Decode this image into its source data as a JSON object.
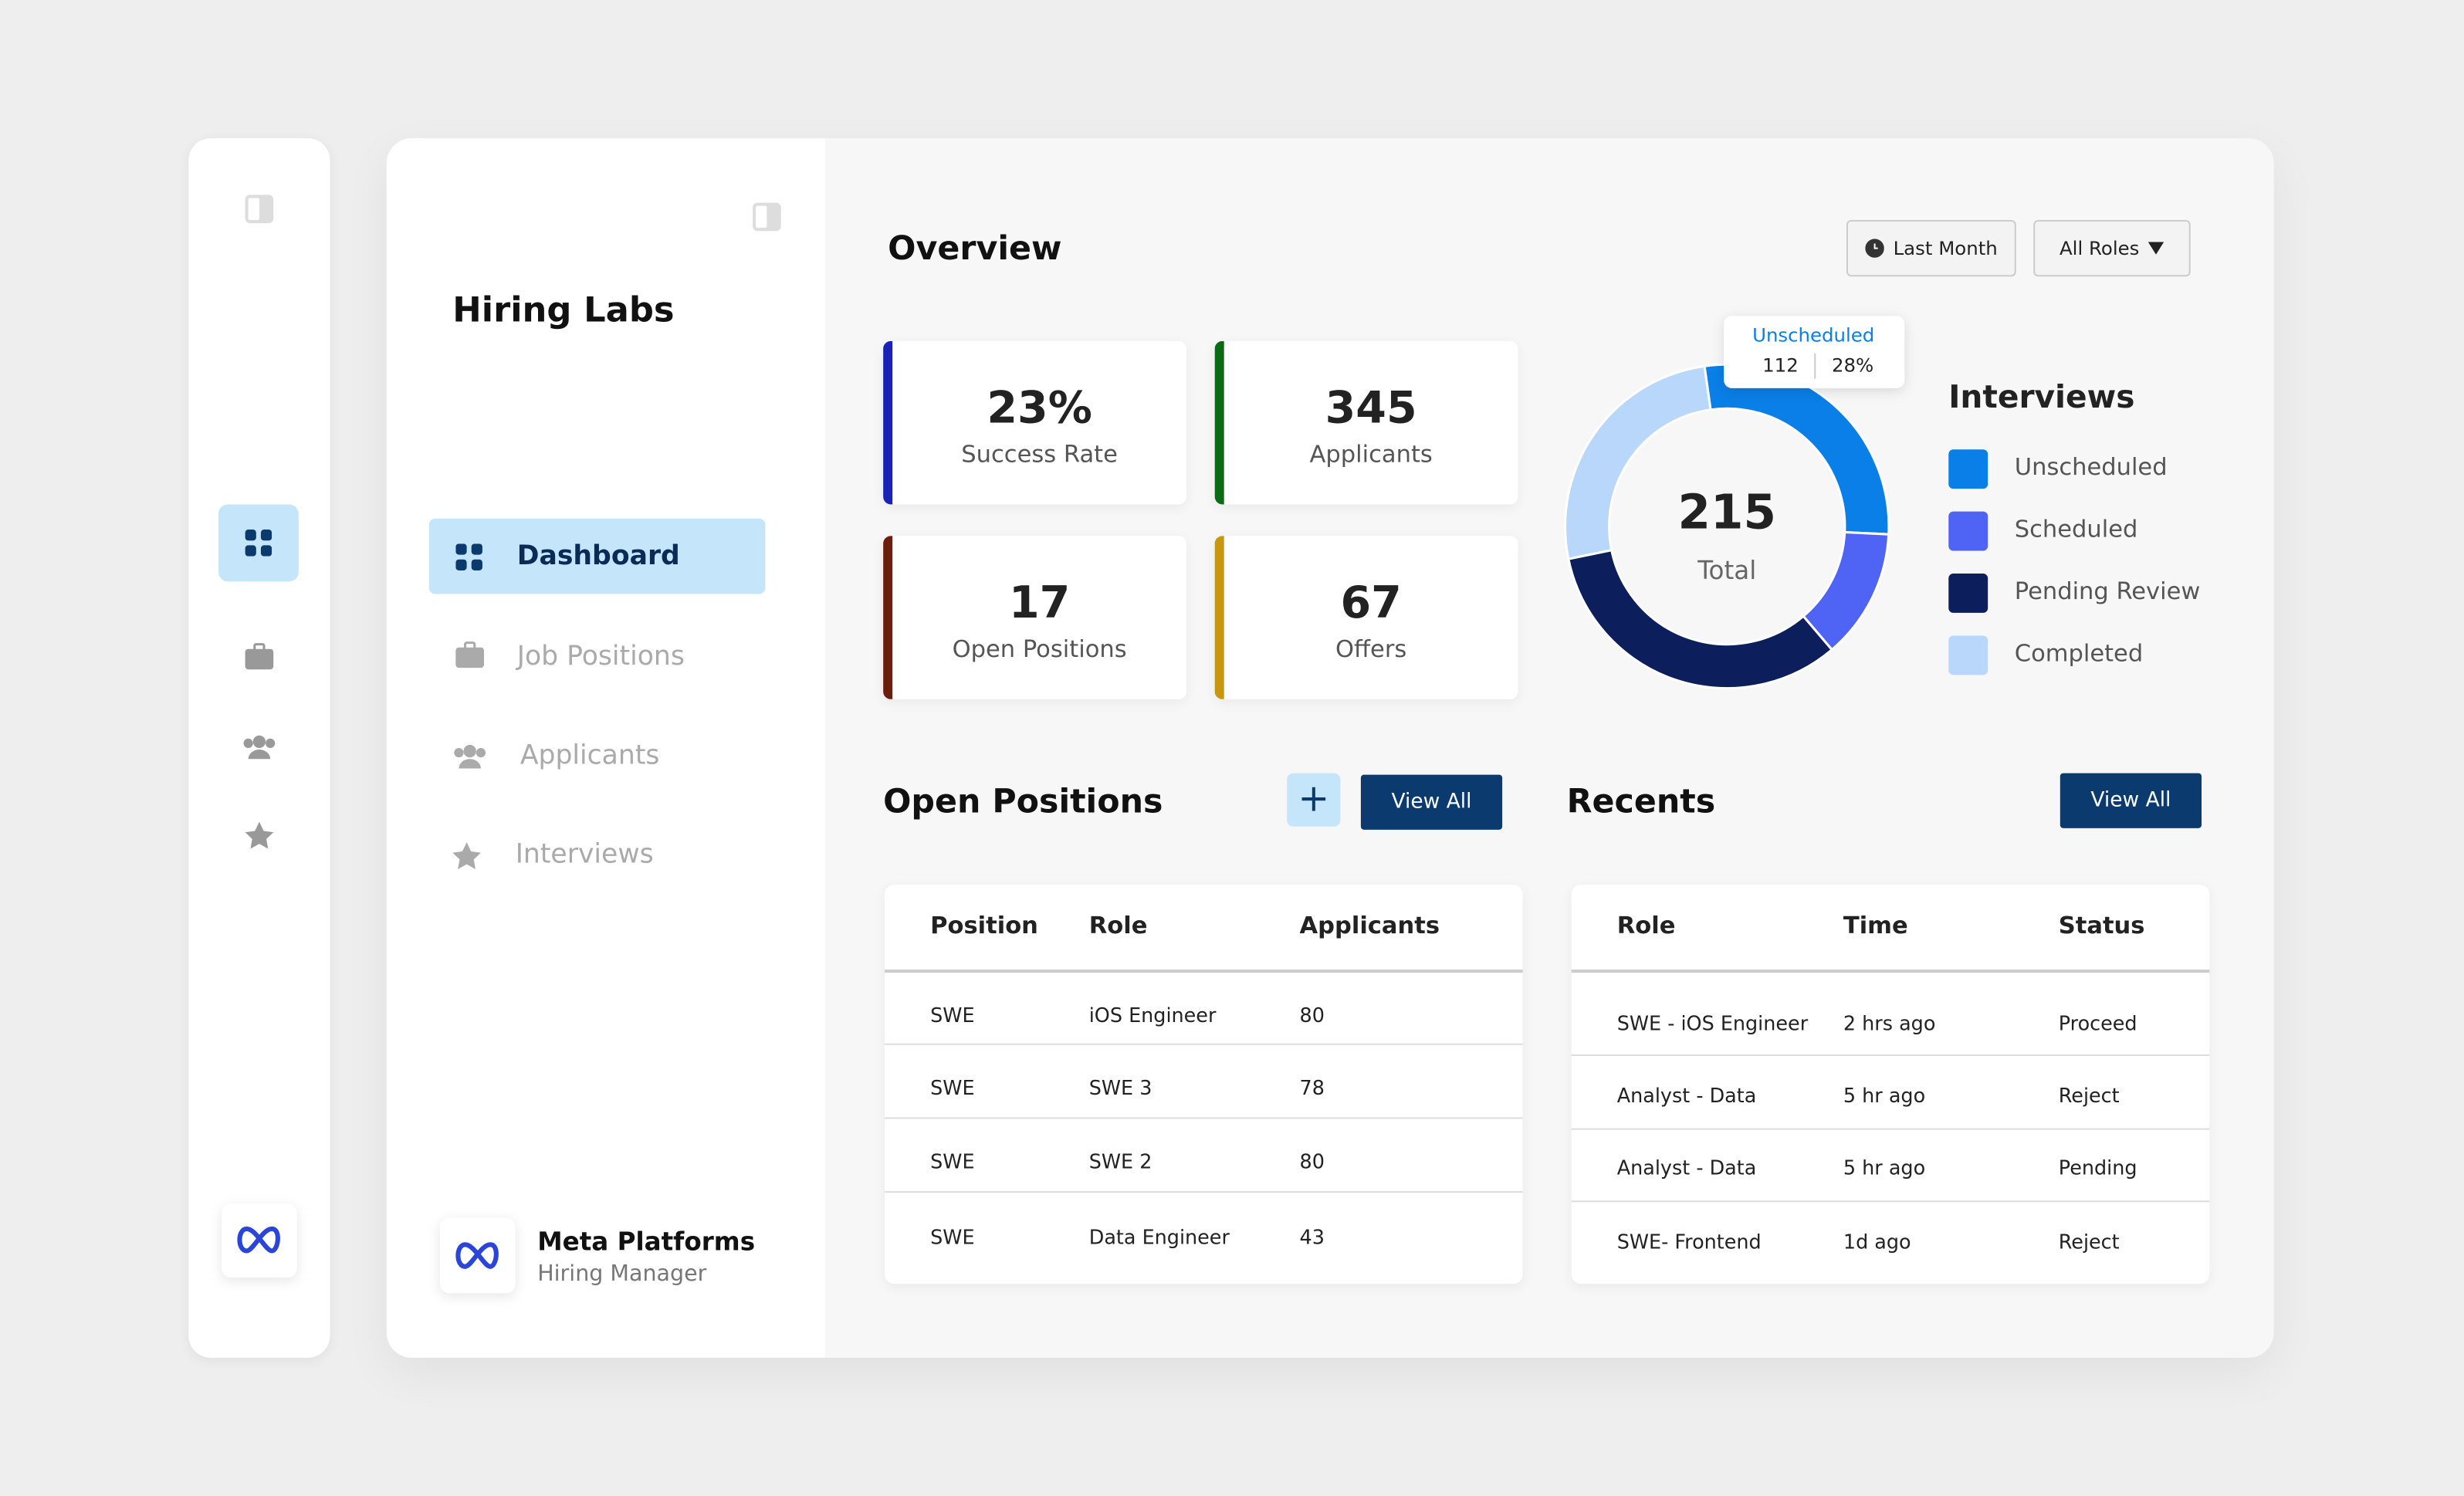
{
  "sidebar": {
    "brand": "Hiring Labs",
    "nav": [
      "Dashboard",
      "Job Positions",
      "Applicants",
      "Interviews"
    ],
    "company": "Meta Platforms",
    "user_role": "Hiring Manager"
  },
  "header": {
    "title": "Overview",
    "filters": [
      "Last Month",
      "All Roles"
    ]
  },
  "stats": [
    {
      "value": "23%",
      "label": "Success Rate",
      "color": "#1a22b5"
    },
    {
      "value": "345",
      "label": "Applicants",
      "color": "#0b6b14"
    },
    {
      "value": "17",
      "label": "Open Positions",
      "color": "#6b1d0e"
    },
    {
      "value": "67",
      "label": "Offers",
      "color": "#c8960f"
    }
  ],
  "chart_data": {
    "type": "donut",
    "title": "Interviews",
    "categories": [
      "Unscheduled",
      "Scheduled",
      "Pending Review",
      "Completed"
    ],
    "values": [
      28,
      13,
      33,
      26
    ],
    "value_labels": [
      "28%",
      null,
      null,
      null
    ],
    "colors": [
      "#0a7fe8",
      "#4f63f5",
      "#0c1f5c",
      "#b9d6fb"
    ],
    "center_value": "215",
    "center_label": "Total",
    "tooltip_count": "112"
  },
  "open_positions": {
    "title": "Open Positions",
    "button": "View All",
    "columns": [
      "Position",
      "Role",
      "Applicants"
    ],
    "rows": [
      [
        "SWE",
        "iOS Engineer",
        "80"
      ],
      [
        "SWE",
        "SWE 3",
        "78"
      ],
      [
        "SWE",
        "SWE 2",
        "80"
      ],
      [
        "SWE",
        "Data Engineer",
        "43"
      ]
    ]
  },
  "recents": {
    "title": "Recents",
    "button": "View All",
    "columns": [
      "Role",
      "Time",
      "Status"
    ],
    "rows": [
      [
        "SWE - iOS Engineer",
        "2 hrs ago",
        "Proceed"
      ],
      [
        "Analyst - Data",
        "5 hr ago",
        "Reject"
      ],
      [
        "Analyst - Data",
        "5 hr ago",
        "Pending"
      ],
      [
        "SWE- Frontend",
        "1d ago",
        "Reject"
      ]
    ]
  }
}
